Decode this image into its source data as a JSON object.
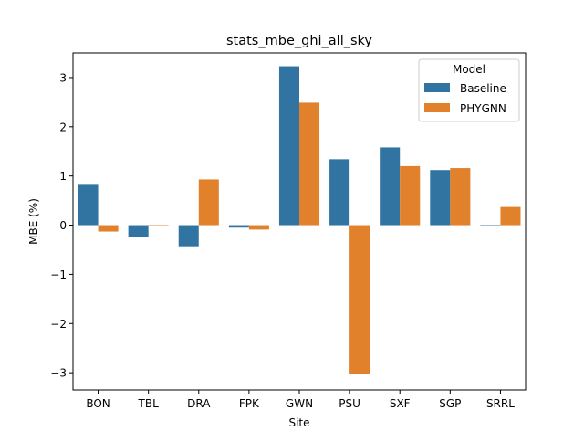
{
  "chart_data": {
    "type": "bar",
    "title": "stats_mbe_ghi_all_sky",
    "xlabel": "Site",
    "ylabel": "MBE (%)",
    "categories": [
      "BON",
      "TBL",
      "DRA",
      "FPK",
      "GWN",
      "PSU",
      "SXF",
      "SGP",
      "SRRL"
    ],
    "series": [
      {
        "name": "Baseline",
        "color": "#3274a1",
        "values": [
          0.82,
          -0.25,
          -0.43,
          -0.05,
          3.23,
          1.34,
          1.58,
          1.12,
          -0.02
        ]
      },
      {
        "name": "PHYGNN",
        "color": "#e1812c",
        "values": [
          -0.13,
          0.0,
          0.93,
          -0.09,
          2.49,
          -3.02,
          1.2,
          1.16,
          0.37
        ]
      }
    ],
    "ylim": [
      -3.35,
      3.5
    ],
    "yticks": [
      3,
      2,
      1,
      0,
      -1,
      -2,
      -3
    ],
    "ytick_labels": [
      "3",
      "2",
      "1",
      "0",
      "−1",
      "−2",
      "−3"
    ],
    "legend": {
      "title": "Model",
      "location": "top-right"
    },
    "grid": false
  }
}
